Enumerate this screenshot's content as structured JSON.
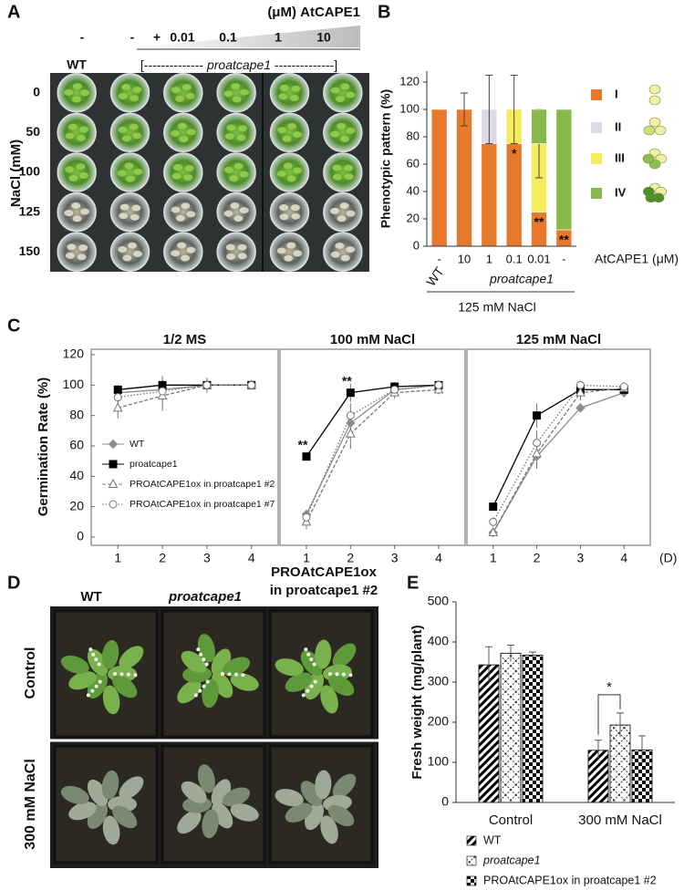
{
  "panel_labels": [
    "A",
    "B",
    "C",
    "D",
    "E"
  ],
  "panel_a": {
    "treatment_label": "(μM) AtCAPE1",
    "treatments": [
      "-",
      "-",
      "+",
      "0.01",
      "0.1",
      "1",
      "10"
    ],
    "genotype_wt": "WT",
    "genotype_bracket": [
      "[--------------",
      "proatcape1",
      "--------------]"
    ],
    "nacl_label": "NaCl (mM)",
    "nacl_levels": [
      "0",
      "50",
      "100",
      "125",
      "150"
    ]
  },
  "panel_d": {
    "columns": [
      "WT",
      "proatcape1",
      "PROAtCAPE1ox",
      "in proatcape1 #2"
    ],
    "rows": [
      "Control",
      "300 mM NaCl"
    ]
  },
  "chart_data": [
    {
      "type": "stacked_bar",
      "y_label": "Phenotypic pattern (%)",
      "categories": [
        "-",
        "10",
        "1",
        "0.1",
        "0.01",
        "-"
      ],
      "x_label": "AtCAPE1 (μM)",
      "group_labels": [
        "WT",
        "proatcape1",
        "125 mM NaCl"
      ],
      "ylim": [
        0,
        128
      ],
      "yticks": [
        0,
        20,
        40,
        60,
        80,
        100,
        120
      ],
      "series": [
        {
          "name": "I",
          "color": "#e8792c",
          "values": [
            100,
            100,
            75,
            75,
            25,
            12
          ],
          "errors": [
            null,
            12,
            null,
            null,
            null,
            null
          ]
        },
        {
          "name": "II",
          "color": "#dcdae6",
          "values": [
            0,
            0,
            25,
            0,
            0,
            0
          ],
          "errors": [
            null,
            null,
            25,
            null,
            null,
            null
          ]
        },
        {
          "name": "III",
          "color": "#f4ec5a",
          "values": [
            0,
            0,
            0,
            25,
            50,
            0
          ],
          "errors": [
            null,
            null,
            null,
            25,
            25,
            null
          ]
        },
        {
          "name": "IV",
          "color": "#86b94a",
          "values": [
            0,
            0,
            0,
            0,
            25,
            88
          ],
          "errors": [
            null,
            null,
            null,
            null,
            null,
            null
          ]
        }
      ],
      "significance": [
        null,
        null,
        null,
        "*",
        "**",
        "**"
      ]
    },
    {
      "type": "line",
      "title": "1/2 MS",
      "y_label": "Germination Rate (%)",
      "x": [
        1,
        2,
        3,
        4
      ],
      "xlim": [
        0.4,
        4.6
      ],
      "xticks": [
        1,
        2,
        3,
        4
      ],
      "ylim": [
        0,
        120
      ],
      "yticks": [
        0,
        20,
        40,
        60,
        80,
        100,
        120
      ],
      "legend": "center-left",
      "series": [
        {
          "name": "WT",
          "color": "#8c8c8c",
          "marker": "diamond",
          "filled": true,
          "dash": "solid",
          "values": [
            95,
            97,
            100,
            100
          ],
          "errors": [
            3,
            8,
            2,
            2
          ]
        },
        {
          "name": "proatcape1",
          "color": "#000000",
          "marker": "square",
          "filled": true,
          "dash": "solid",
          "values": [
            97,
            100,
            100,
            100
          ],
          "errors": [
            3,
            6,
            5,
            3
          ]
        },
        {
          "name": "PROAtCAPE1ox in proatcape1 #2",
          "color": "#777777",
          "marker": "triangle",
          "filled": false,
          "dash": "dashed",
          "values": [
            85,
            93,
            100,
            100
          ],
          "errors": [
            7,
            10,
            4,
            2
          ]
        },
        {
          "name": "PROAtCAPE1ox in proatcape1 #7",
          "color": "#777777",
          "marker": "circle",
          "filled": false,
          "dash": "dotted",
          "values": [
            92,
            96,
            100,
            100
          ],
          "errors": [
            4,
            7,
            3,
            2
          ]
        }
      ]
    },
    {
      "type": "line",
      "title": "100 mM NaCl",
      "x": [
        1,
        2,
        3,
        4
      ],
      "xlim": [
        0.4,
        4.6
      ],
      "xticks": [
        1,
        2,
        3,
        4
      ],
      "ylim": [
        0,
        120
      ],
      "series": [
        {
          "color": "#8c8c8c",
          "marker": "diamond",
          "filled": true,
          "dash": "solid",
          "values": [
            15,
            75,
            97,
            100
          ],
          "errors": [
            3,
            8,
            3,
            2
          ]
        },
        {
          "color": "#000000",
          "marker": "square",
          "filled": true,
          "dash": "solid",
          "values": [
            53,
            95,
            99,
            100
          ],
          "errors": [
            2,
            6,
            3,
            2
          ],
          "significance": [
            "**",
            "**",
            null,
            null
          ]
        },
        {
          "color": "#777777",
          "marker": "triangle",
          "filled": false,
          "dash": "dashed",
          "values": [
            10,
            68,
            95,
            97
          ],
          "errors": [
            5,
            10,
            4,
            3
          ]
        },
        {
          "color": "#777777",
          "marker": "circle",
          "filled": false,
          "dash": "dotted",
          "values": [
            13,
            80,
            97,
            100
          ],
          "errors": [
            3,
            8,
            3,
            2
          ]
        }
      ]
    },
    {
      "type": "line",
      "title": "125 mM NaCl",
      "x_unit": "(D)",
      "x": [
        1,
        2,
        3,
        4
      ],
      "xlim": [
        0.4,
        4.6
      ],
      "xticks": [
        1,
        2,
        3,
        4
      ],
      "ylim": [
        0,
        120
      ],
      "series": [
        {
          "color": "#8c8c8c",
          "marker": "diamond",
          "filled": true,
          "dash": "solid",
          "values": [
            3,
            53,
            85,
            95
          ],
          "errors": [
            2,
            8,
            3,
            3
          ]
        },
        {
          "color": "#000000",
          "marker": "square",
          "filled": true,
          "dash": "solid",
          "values": [
            20,
            80,
            97,
            97
          ],
          "errors": [
            2,
            8,
            3,
            3
          ]
        },
        {
          "color": "#777777",
          "marker": "triangle",
          "filled": false,
          "dash": "dashed",
          "values": [
            3,
            55,
            95,
            98
          ],
          "errors": [
            2,
            8,
            5,
            3
          ]
        },
        {
          "color": "#777777",
          "marker": "circle",
          "filled": false,
          "dash": "dotted",
          "values": [
            10,
            62,
            100,
            99
          ],
          "errors": [
            3,
            8,
            3,
            3
          ]
        }
      ]
    },
    {
      "type": "grouped_bar",
      "y_label": "Fresh weight (mg/plant)",
      "categories": [
        "Control",
        "300 mM NaCl"
      ],
      "ylim": [
        0,
        500
      ],
      "yticks": [
        0,
        100,
        200,
        300,
        400,
        500
      ],
      "series": [
        {
          "name": "WT",
          "pattern": "diagonal",
          "values": [
            343,
            130
          ],
          "errors": [
            45,
            25
          ]
        },
        {
          "name": "proatcape1",
          "pattern": "crosshatch",
          "values": [
            372,
            193
          ],
          "errors": [
            20,
            30
          ]
        },
        {
          "name": "PROAtCAPE1ox in proatcape1 #2",
          "pattern": "checker",
          "values": [
            367,
            131
          ],
          "errors": [
            8,
            35
          ]
        }
      ],
      "significance": {
        "text": "*",
        "category": 1,
        "between": [
          0,
          1
        ]
      }
    }
  ]
}
